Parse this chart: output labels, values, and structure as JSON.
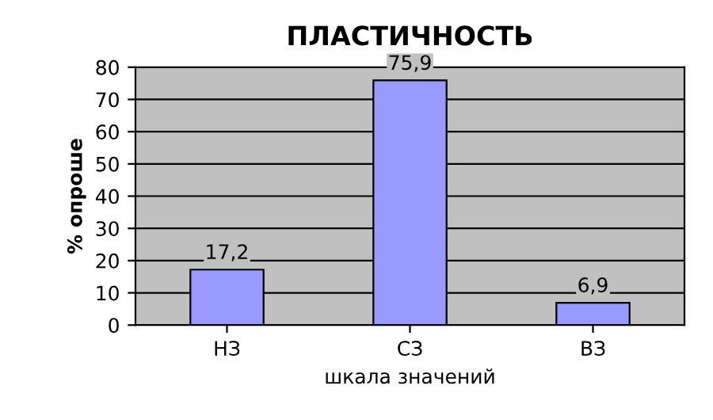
{
  "chart_data": {
    "type": "bar",
    "title": "ПЛАСТИЧНОСТЬ",
    "xlabel": "шкала значений",
    "ylabel": "% опроше",
    "categories": [
      "НЗ",
      "СЗ",
      "ВЗ"
    ],
    "values": [
      17.2,
      75.9,
      6.9
    ],
    "value_labels": [
      "17,2",
      "75,9",
      "6,9"
    ],
    "color": "#9999ff",
    "ylim": [
      0,
      80
    ],
    "yticks": [
      0,
      10,
      20,
      30,
      40,
      50,
      60,
      70,
      80
    ],
    "grid": "y"
  }
}
